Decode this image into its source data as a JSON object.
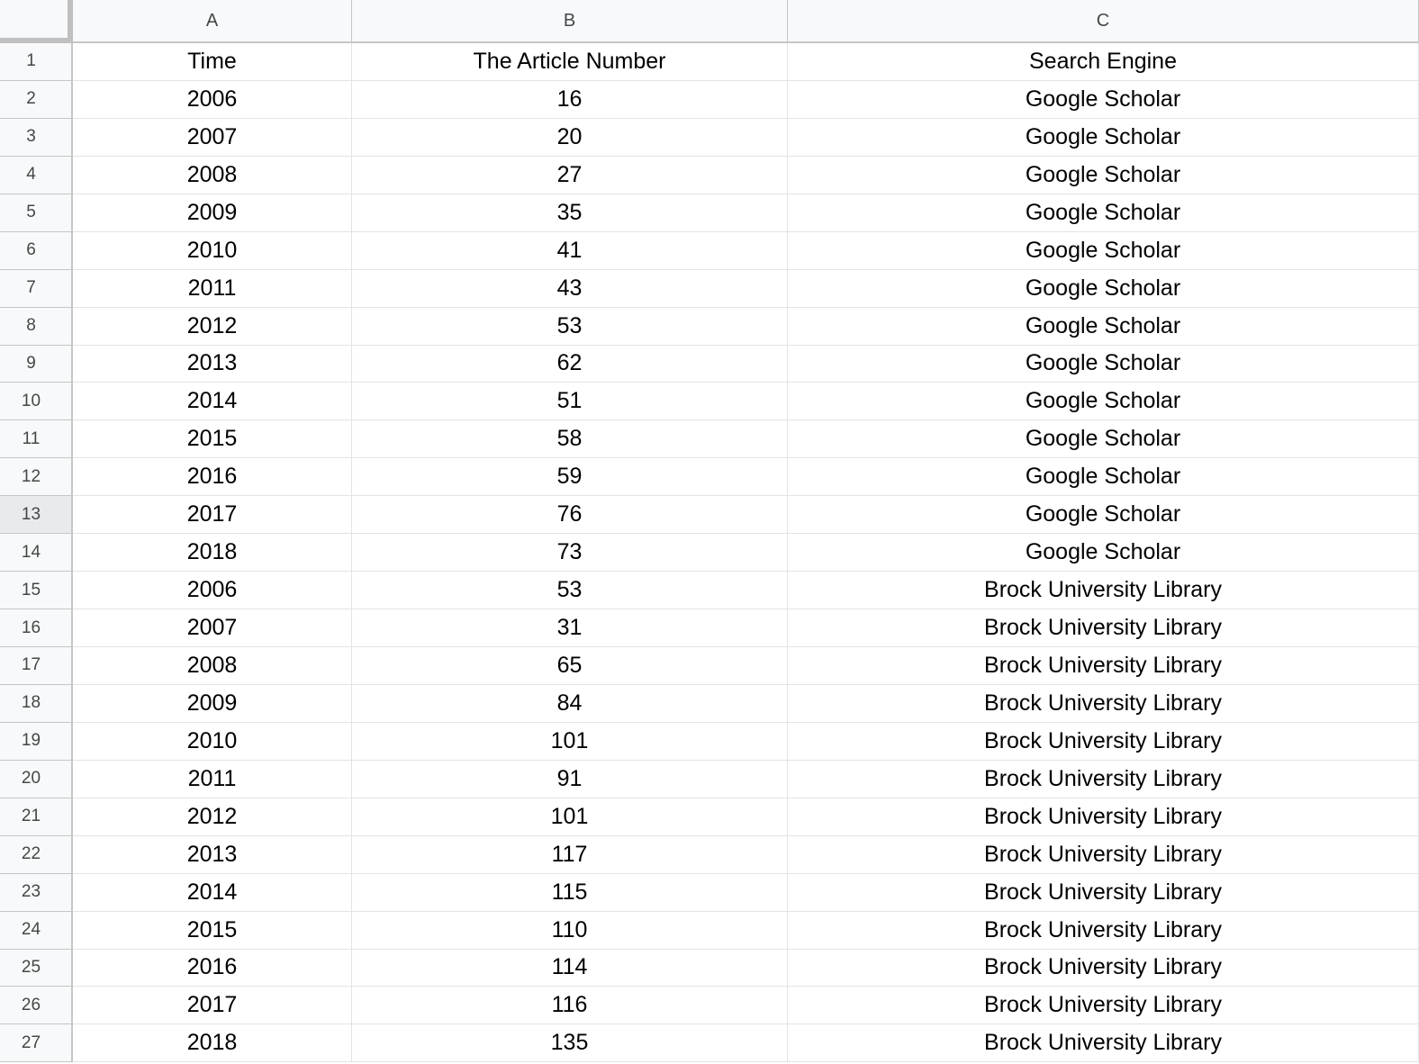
{
  "column_headers": [
    "A",
    "B",
    "C"
  ],
  "rows": [
    {
      "row": "1",
      "a": "Time",
      "b": "The Article Number",
      "c": "Search Engine"
    },
    {
      "row": "2",
      "a": "2006",
      "b": "16",
      "c": "Google Scholar"
    },
    {
      "row": "3",
      "a": "2007",
      "b": "20",
      "c": "Google Scholar"
    },
    {
      "row": "4",
      "a": "2008",
      "b": "27",
      "c": "Google Scholar"
    },
    {
      "row": "5",
      "a": "2009",
      "b": "35",
      "c": "Google Scholar"
    },
    {
      "row": "6",
      "a": "2010",
      "b": "41",
      "c": "Google Scholar"
    },
    {
      "row": "7",
      "a": "2011",
      "b": "43",
      "c": "Google Scholar"
    },
    {
      "row": "8",
      "a": "2012",
      "b": "53",
      "c": "Google Scholar"
    },
    {
      "row": "9",
      "a": "2013",
      "b": "62",
      "c": "Google Scholar"
    },
    {
      "row": "10",
      "a": "2014",
      "b": "51",
      "c": "Google Scholar"
    },
    {
      "row": "11",
      "a": "2015",
      "b": "58",
      "c": "Google Scholar"
    },
    {
      "row": "12",
      "a": "2016",
      "b": "59",
      "c": "Google Scholar"
    },
    {
      "row": "13",
      "a": "2017",
      "b": "76",
      "c": "Google Scholar"
    },
    {
      "row": "14",
      "a": "2018",
      "b": "73",
      "c": "Google Scholar"
    },
    {
      "row": "15",
      "a": "2006",
      "b": "53",
      "c": "Brock University Library"
    },
    {
      "row": "16",
      "a": "2007",
      "b": "31",
      "c": "Brock University Library"
    },
    {
      "row": "17",
      "a": "2008",
      "b": "65",
      "c": "Brock University Library"
    },
    {
      "row": "18",
      "a": "2009",
      "b": "84",
      "c": "Brock University Library"
    },
    {
      "row": "19",
      "a": "2010",
      "b": "101",
      "c": "Brock University Library"
    },
    {
      "row": "20",
      "a": "2011",
      "b": "91",
      "c": "Brock University Library"
    },
    {
      "row": "21",
      "a": "2012",
      "b": "101",
      "c": "Brock University Library"
    },
    {
      "row": "22",
      "a": "2013",
      "b": "117",
      "c": "Brock University Library"
    },
    {
      "row": "23",
      "a": "2014",
      "b": "115",
      "c": "Brock University Library"
    },
    {
      "row": "24",
      "a": "2015",
      "b": "110",
      "c": "Brock University Library"
    },
    {
      "row": "25",
      "a": "2016",
      "b": "114",
      "c": "Brock University Library"
    },
    {
      "row": "26",
      "a": "2017",
      "b": "116",
      "c": "Brock University Library"
    },
    {
      "row": "27",
      "a": "2018",
      "b": "135",
      "c": "Brock University Library"
    }
  ],
  "selected_row": "13",
  "colors": {
    "header_background": "#f8f9fa",
    "selected_row_header": "#e8eaed",
    "gridline": "#e2e3e3",
    "header_text": "#444746"
  }
}
